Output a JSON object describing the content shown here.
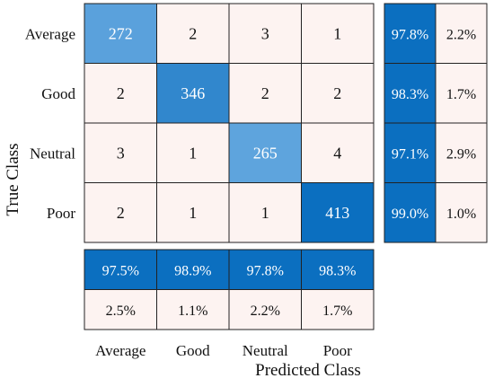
{
  "chart_data": {
    "type": "heatmap",
    "title": "",
    "xlabel": "Predicted Class",
    "ylabel": "True Class",
    "classes": [
      "Average",
      "Good",
      "Neutral",
      "Poor"
    ],
    "matrix": [
      [
        272,
        2,
        3,
        1
      ],
      [
        2,
        346,
        2,
        2
      ],
      [
        3,
        1,
        265,
        4
      ],
      [
        2,
        1,
        1,
        413
      ]
    ],
    "row_summary": {
      "correct": [
        "97.8%",
        "98.3%",
        "97.1%",
        "99.0%"
      ],
      "incorrect": [
        "2.2%",
        "1.7%",
        "2.9%",
        "1.0%"
      ]
    },
    "column_summary": {
      "correct": [
        "97.5%",
        "98.9%",
        "97.8%",
        "98.3%"
      ],
      "incorrect": [
        "2.5%",
        "1.1%",
        "2.2%",
        "1.7%"
      ]
    },
    "colors": {
      "diagonal_max": "#0b6fc0",
      "diagonal_min": "#5ea4dd",
      "off_diagonal": "#fdf3f1",
      "summary_good": "#0b6fc0",
      "summary_bad": "#fdf3f1",
      "grid": "#222222"
    }
  }
}
